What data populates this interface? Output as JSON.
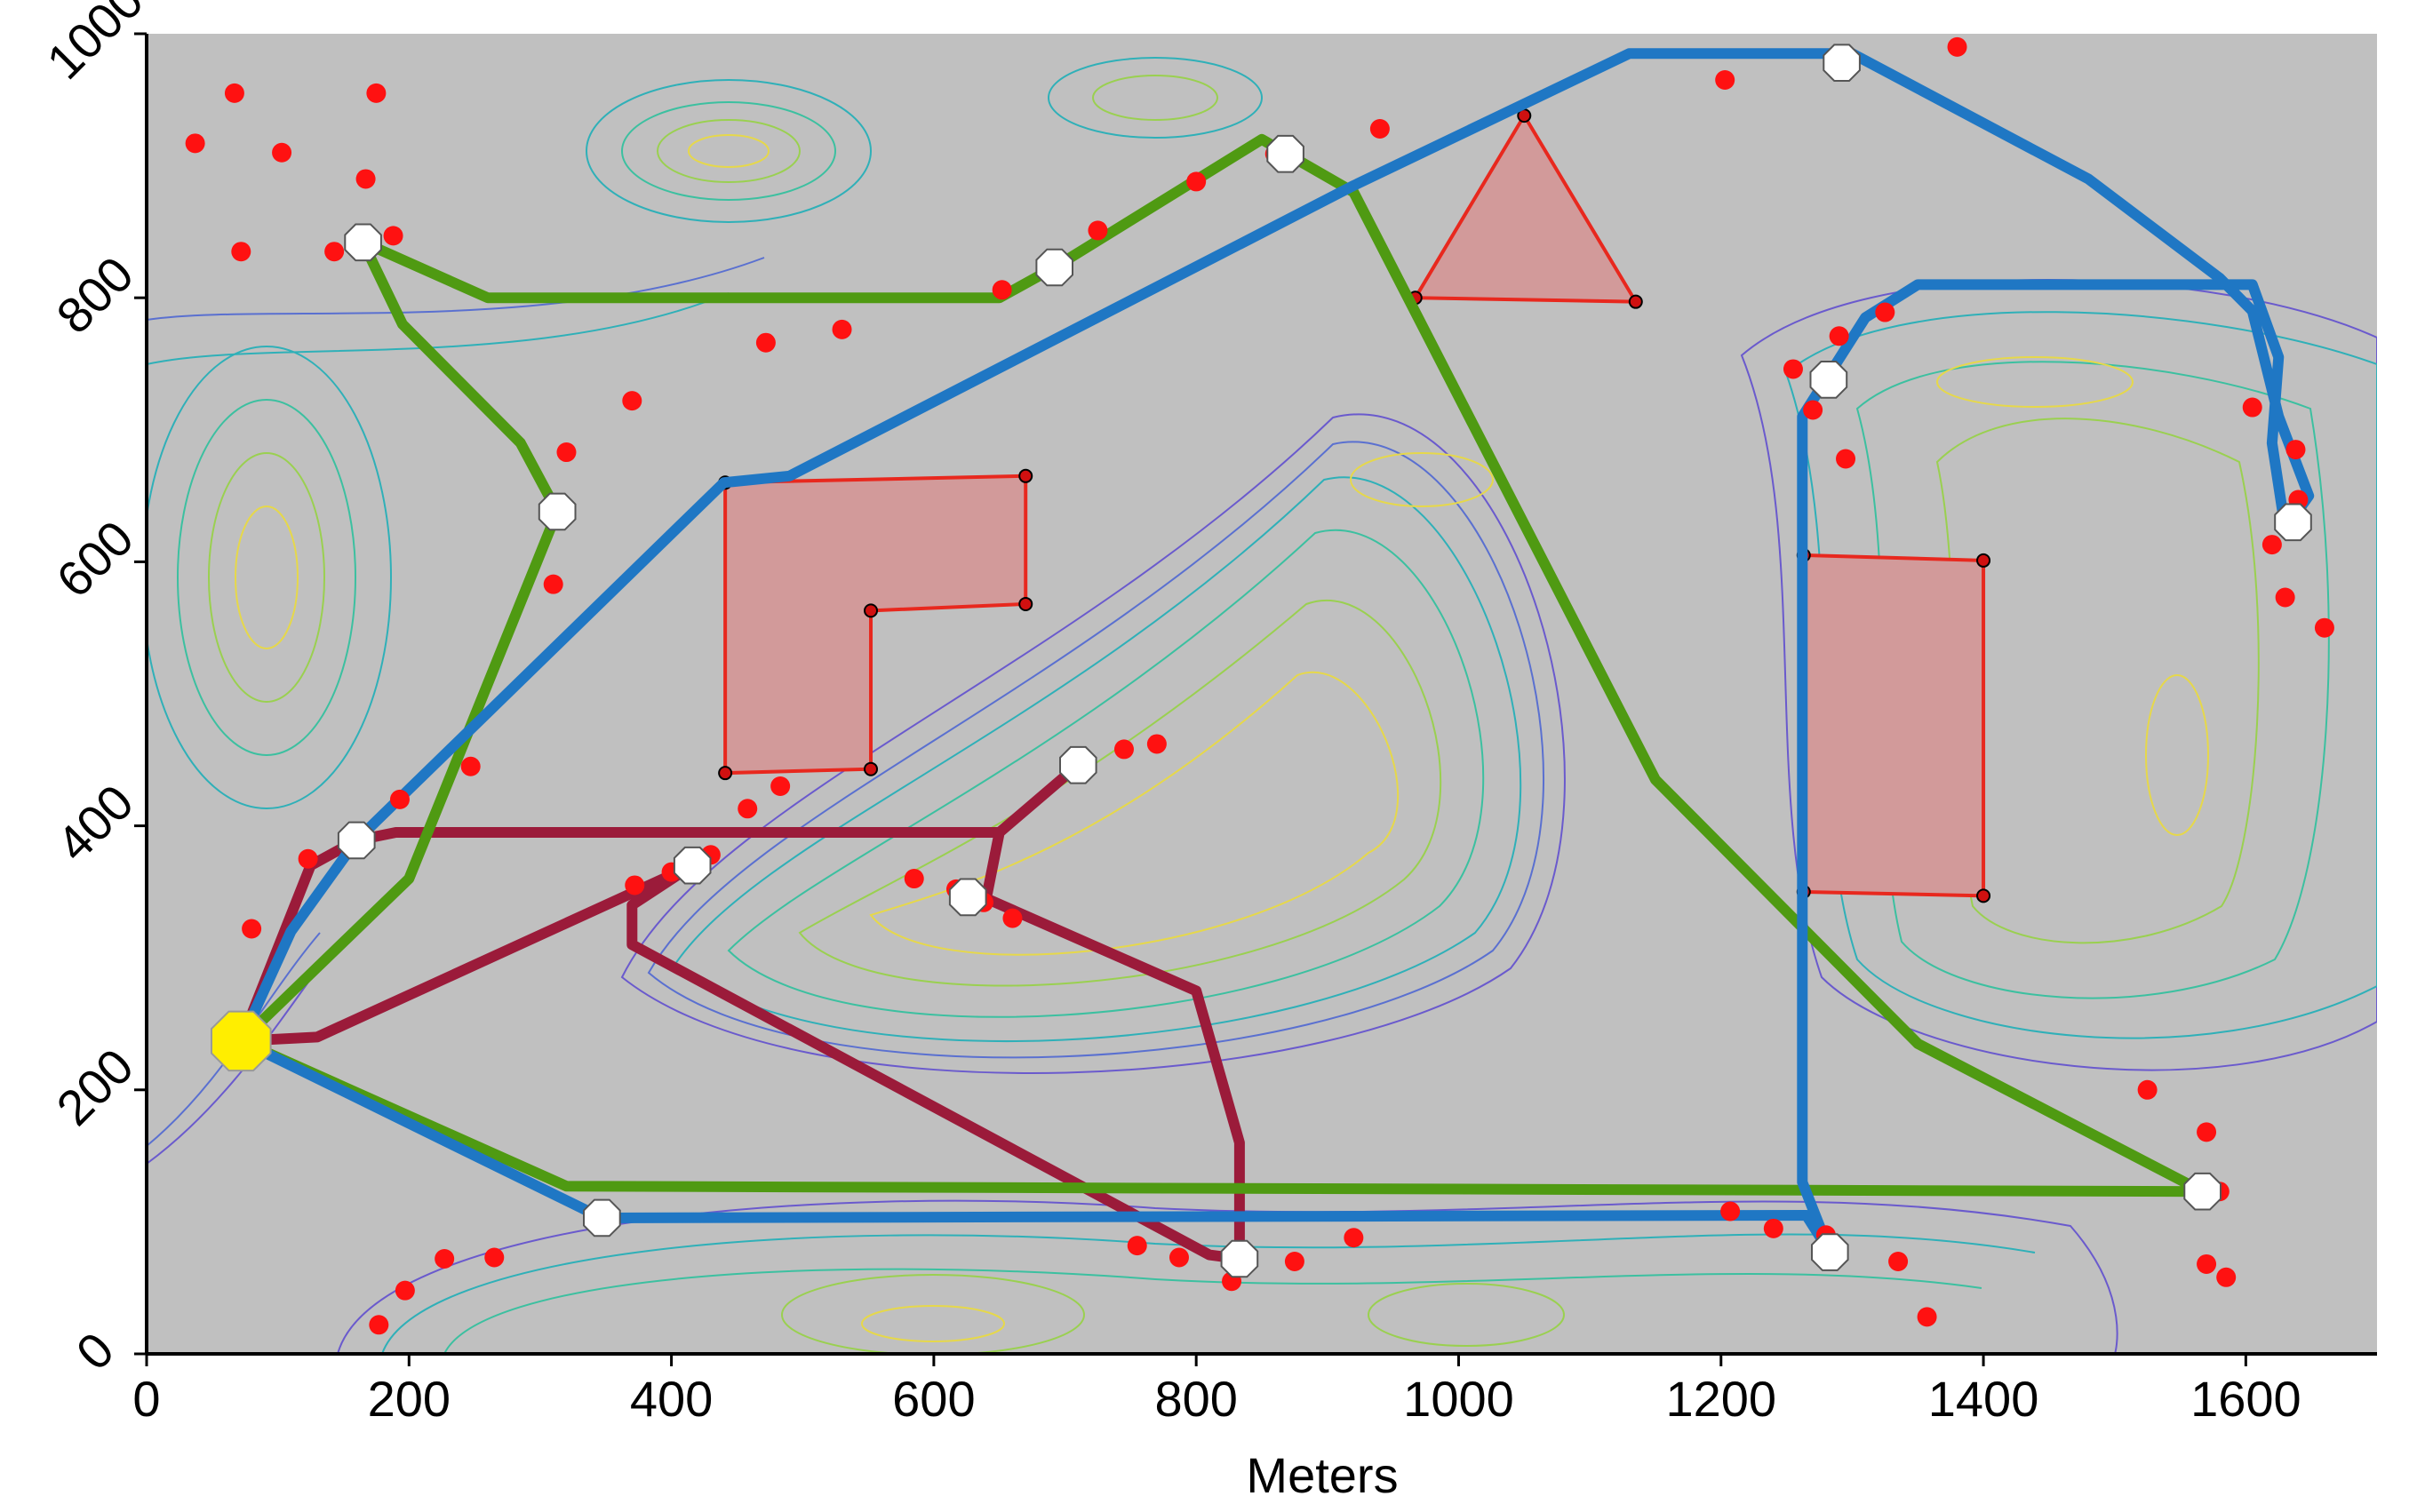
{
  "axes": {
    "xlabel": "Meters",
    "ylabel": "",
    "xlim": [
      0,
      1700
    ],
    "ylim": [
      0,
      1000
    ],
    "xticks": [
      0,
      200,
      400,
      600,
      800,
      1000,
      1200,
      1400,
      1600
    ],
    "yticks": [
      0,
      200,
      400,
      600,
      800,
      1000
    ],
    "xtick_labels": [
      "0",
      "200",
      "400",
      "600",
      "800",
      "1000",
      "1200",
      "1400",
      "1600"
    ],
    "ytick_labels": [
      "0",
      "200",
      "400",
      "600",
      "800",
      "1000"
    ]
  },
  "colors": {
    "background": "#c0c0c0",
    "route_blue": "#1f77c4",
    "route_green": "#4f9a12",
    "route_maroon": "#9b1b3a",
    "obstacle_fill": "#d29a9a",
    "obstacle_edge": "#e8281e",
    "target_dot": "#ff1111",
    "depot": "#ffee00"
  },
  "depot": {
    "x": 72,
    "y": 237
  },
  "waypoints": [
    {
      "x": 165,
      "y": 842
    },
    {
      "x": 313,
      "y": 638
    },
    {
      "x": 160,
      "y": 389
    },
    {
      "x": 347,
      "y": 103
    },
    {
      "x": 692,
      "y": 823
    },
    {
      "x": 868,
      "y": 909
    },
    {
      "x": 1292,
      "y": 978
    },
    {
      "x": 1282,
      "y": 738
    },
    {
      "x": 1636,
      "y": 630
    },
    {
      "x": 1567,
      "y": 123
    },
    {
      "x": 1283,
      "y": 77
    },
    {
      "x": 833,
      "y": 72
    },
    {
      "x": 416,
      "y": 370
    },
    {
      "x": 626,
      "y": 346
    },
    {
      "x": 710,
      "y": 446
    }
  ],
  "routes": [
    {
      "name": "blue",
      "points": [
        [
          72,
          237
        ],
        [
          110,
          320
        ],
        [
          160,
          389
        ],
        [
          440,
          660
        ],
        [
          490,
          665
        ],
        [
          920,
          885
        ],
        [
          1130,
          985
        ],
        [
          1300,
          985
        ],
        [
          1480,
          890
        ],
        [
          1580,
          815
        ],
        [
          1605,
          790
        ],
        [
          1625,
          710
        ],
        [
          1648,
          650
        ],
        [
          1630,
          625
        ],
        [
          1620,
          690
        ],
        [
          1625,
          755
        ],
        [
          1605,
          810
        ],
        [
          1580,
          810
        ],
        [
          1350,
          810
        ],
        [
          1310,
          785
        ],
        [
          1262,
          710
        ],
        [
          1262,
          130
        ],
        [
          1283,
          77
        ],
        [
          1265,
          105
        ],
        [
          347,
          103
        ],
        [
          72,
          237
        ]
      ]
    },
    {
      "name": "green",
      "points": [
        [
          72,
          237
        ],
        [
          200,
          360
        ],
        [
          313,
          638
        ],
        [
          285,
          690
        ],
        [
          195,
          780
        ],
        [
          165,
          842
        ],
        [
          260,
          800
        ],
        [
          650,
          800
        ],
        [
          692,
          823
        ],
        [
          850,
          920
        ],
        [
          920,
          880
        ],
        [
          1150,
          435
        ],
        [
          1350,
          235
        ],
        [
          1567,
          123
        ],
        [
          320,
          127
        ],
        [
          72,
          237
        ]
      ]
    },
    {
      "name": "maroon",
      "points": [
        [
          72,
          237
        ],
        [
          130,
          240
        ],
        [
          416,
          370
        ],
        [
          370,
          340
        ],
        [
          370,
          310
        ],
        [
          810,
          75
        ],
        [
          833,
          72
        ],
        [
          833,
          160
        ],
        [
          800,
          275
        ],
        [
          640,
          345
        ],
        [
          650,
          395
        ],
        [
          710,
          446
        ],
        [
          650,
          395
        ],
        [
          190,
          395
        ],
        [
          160,
          389
        ],
        [
          125,
          370
        ],
        [
          72,
          237
        ]
      ]
    }
  ],
  "obstacles": [
    {
      "points": [
        [
          441,
          660
        ],
        [
          670,
          665
        ],
        [
          670,
          568
        ],
        [
          552,
          563
        ],
        [
          552,
          443
        ],
        [
          441,
          440
        ]
      ]
    },
    {
      "points": [
        [
          967,
          800
        ],
        [
          1050,
          938
        ],
        [
          1135,
          797
        ]
      ]
    },
    {
      "points": [
        [
          1263,
          605
        ],
        [
          1400,
          601
        ],
        [
          1400,
          347
        ],
        [
          1263,
          350
        ]
      ]
    }
  ],
  "targets": [
    {
      "x": 37,
      "y": 917
    },
    {
      "x": 67,
      "y": 955
    },
    {
      "x": 103,
      "y": 910
    },
    {
      "x": 72,
      "y": 835
    },
    {
      "x": 143,
      "y": 835
    },
    {
      "x": 175,
      "y": 955
    },
    {
      "x": 167,
      "y": 890
    },
    {
      "x": 188,
      "y": 847
    },
    {
      "x": 370,
      "y": 722
    },
    {
      "x": 320,
      "y": 683
    },
    {
      "x": 310,
      "y": 583
    },
    {
      "x": 472,
      "y": 766
    },
    {
      "x": 530,
      "y": 776
    },
    {
      "x": 652,
      "y": 806
    },
    {
      "x": 690,
      "y": 823
    },
    {
      "x": 725,
      "y": 851
    },
    {
      "x": 800,
      "y": 888
    },
    {
      "x": 860,
      "y": 909
    },
    {
      "x": 940,
      "y": 928
    },
    {
      "x": 1203,
      "y": 965
    },
    {
      "x": 1295,
      "y": 978
    },
    {
      "x": 1380,
      "y": 990
    },
    {
      "x": 1255,
      "y": 746
    },
    {
      "x": 1290,
      "y": 771
    },
    {
      "x": 1325,
      "y": 789
    },
    {
      "x": 1270,
      "y": 715
    },
    {
      "x": 1295,
      "y": 678
    },
    {
      "x": 1605,
      "y": 717
    },
    {
      "x": 1638,
      "y": 685
    },
    {
      "x": 1640,
      "y": 647
    },
    {
      "x": 1620,
      "y": 613
    },
    {
      "x": 1630,
      "y": 573
    },
    {
      "x": 1660,
      "y": 550
    },
    {
      "x": 80,
      "y": 322
    },
    {
      "x": 123,
      "y": 375
    },
    {
      "x": 193,
      "y": 420
    },
    {
      "x": 247,
      "y": 445
    },
    {
      "x": 458,
      "y": 413
    },
    {
      "x": 483,
      "y": 430
    },
    {
      "x": 372,
      "y": 355
    },
    {
      "x": 400,
      "y": 365
    },
    {
      "x": 430,
      "y": 378
    },
    {
      "x": 585,
      "y": 360
    },
    {
      "x": 617,
      "y": 352
    },
    {
      "x": 638,
      "y": 342
    },
    {
      "x": 660,
      "y": 330
    },
    {
      "x": 713,
      "y": 446
    },
    {
      "x": 745,
      "y": 458
    },
    {
      "x": 770,
      "y": 462
    },
    {
      "x": 350,
      "y": 103
    },
    {
      "x": 177,
      "y": 22
    },
    {
      "x": 197,
      "y": 48
    },
    {
      "x": 227,
      "y": 72
    },
    {
      "x": 265,
      "y": 73
    },
    {
      "x": 755,
      "y": 82
    },
    {
      "x": 787,
      "y": 73
    },
    {
      "x": 827,
      "y": 55
    },
    {
      "x": 875,
      "y": 70
    },
    {
      "x": 920,
      "y": 88
    },
    {
      "x": 1207,
      "y": 108
    },
    {
      "x": 1240,
      "y": 95
    },
    {
      "x": 1280,
      "y": 90
    },
    {
      "x": 1335,
      "y": 70
    },
    {
      "x": 1357,
      "y": 28
    },
    {
      "x": 1525,
      "y": 200
    },
    {
      "x": 1570,
      "y": 168
    },
    {
      "x": 1580,
      "y": 123
    },
    {
      "x": 1570,
      "y": 68
    },
    {
      "x": 1585,
      "y": 58
    }
  ]
}
